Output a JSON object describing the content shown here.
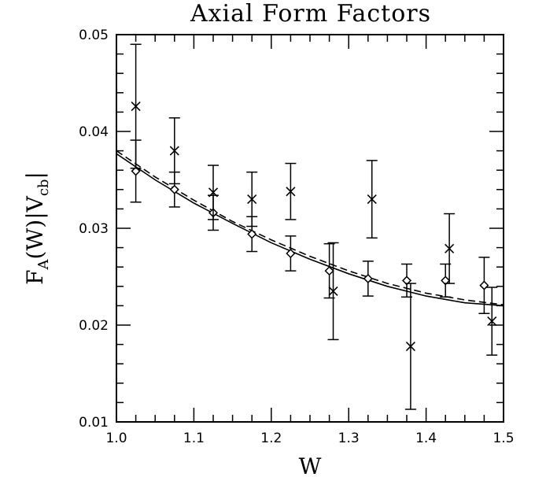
{
  "chart_data": {
    "type": "scatter",
    "title": "Axial Form Factors",
    "xlabel": "W",
    "ylabel_parts": {
      "f": "F",
      "f_sub": "A",
      "mid": "(W)|V",
      "v_sub": "cb",
      "end": "|"
    },
    "xlim": [
      1.0,
      1.5
    ],
    "ylim": [
      0.01,
      0.05
    ],
    "x_ticks": [
      1.0,
      1.1,
      1.2,
      1.3,
      1.4,
      1.5
    ],
    "x_tick_labels": [
      "1.0",
      "1.1",
      "1.2",
      "1.3",
      "1.4",
      "1.5"
    ],
    "y_ticks": [
      0.01,
      0.02,
      0.03,
      0.04,
      0.05
    ],
    "y_tick_labels": [
      "0.01",
      "0.02",
      "0.03",
      "0.04",
      "0.05"
    ],
    "grid": false,
    "series": [
      {
        "marker": "diamond",
        "points": [
          {
            "x": 1.025,
            "y": 0.0359,
            "err": 0.0032
          },
          {
            "x": 1.075,
            "y": 0.034,
            "err": 0.0018
          },
          {
            "x": 1.125,
            "y": 0.0316,
            "err": 0.0018
          },
          {
            "x": 1.175,
            "y": 0.0294,
            "err": 0.0018
          },
          {
            "x": 1.225,
            "y": 0.0274,
            "err": 0.0018
          },
          {
            "x": 1.275,
            "y": 0.0256,
            "err": 0.0028
          },
          {
            "x": 1.325,
            "y": 0.0248,
            "err": 0.0018
          },
          {
            "x": 1.375,
            "y": 0.0246,
            "err": 0.0017
          },
          {
            "x": 1.425,
            "y": 0.0246,
            "err": 0.0017
          },
          {
            "x": 1.475,
            "y": 0.0241,
            "err": 0.0029
          }
        ]
      },
      {
        "marker": "cross",
        "points": [
          {
            "x": 1.025,
            "y": 0.0426,
            "err": 0.0064
          },
          {
            "x": 1.075,
            "y": 0.038,
            "err": 0.0034
          },
          {
            "x": 1.125,
            "y": 0.0337,
            "err": 0.0028
          },
          {
            "x": 1.175,
            "y": 0.033,
            "err": 0.0028
          },
          {
            "x": 1.225,
            "y": 0.0338,
            "err": 0.0029
          },
          {
            "x": 1.28,
            "y": 0.0235,
            "err": 0.005
          },
          {
            "x": 1.33,
            "y": 0.033,
            "err": 0.004
          },
          {
            "x": 1.38,
            "y": 0.0178,
            "err": 0.0065
          },
          {
            "x": 1.43,
            "y": 0.0279,
            "err": 0.0036
          },
          {
            "x": 1.485,
            "y": 0.0204,
            "err": 0.0035
          }
        ]
      },
      {
        "style": "solid-line",
        "x": [
          1.0,
          1.05,
          1.1,
          1.15,
          1.2,
          1.25,
          1.3,
          1.35,
          1.4,
          1.45,
          1.5
        ],
        "y": [
          0.0377,
          0.035,
          0.0326,
          0.0305,
          0.0285,
          0.0268,
          0.0253,
          0.024,
          0.023,
          0.0223,
          0.022
        ]
      },
      {
        "style": "dashed-line",
        "x": [
          1.0,
          1.05,
          1.1,
          1.15,
          1.2,
          1.25,
          1.3,
          1.35,
          1.4,
          1.45,
          1.5
        ],
        "y": [
          0.038,
          0.0353,
          0.0329,
          0.0307,
          0.0288,
          0.0271,
          0.0256,
          0.0243,
          0.0233,
          0.0226,
          0.0221
        ]
      }
    ]
  }
}
